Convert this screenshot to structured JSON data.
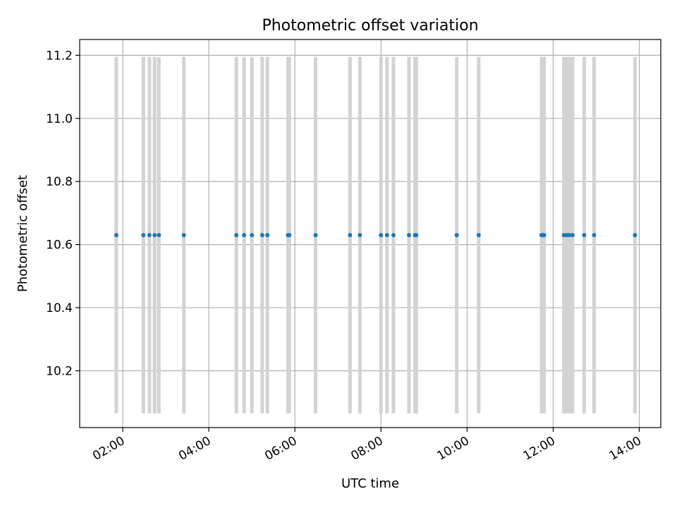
{
  "chart_data": {
    "type": "scatter",
    "title": "Photometric offset variation",
    "xlabel": "UTC time",
    "ylabel": "Photometric offset",
    "x_unit": "UTC time (hours)",
    "xlim": [
      1.0,
      14.5
    ],
    "ylim": [
      10.02,
      11.25
    ],
    "grid": true,
    "x_ticks": [
      {
        "value": 2,
        "label": "02:00"
      },
      {
        "value": 4,
        "label": "04:00"
      },
      {
        "value": 6,
        "label": "06:00"
      },
      {
        "value": 8,
        "label": "08:00"
      },
      {
        "value": 10,
        "label": "10:00"
      },
      {
        "value": 12,
        "label": "12:00"
      },
      {
        "value": 14,
        "label": "14:00"
      }
    ],
    "y_ticks": [
      {
        "value": 10.2,
        "label": "10.2"
      },
      {
        "value": 10.4,
        "label": "10.4"
      },
      {
        "value": 10.6,
        "label": "10.6"
      },
      {
        "value": 10.8,
        "label": "10.8"
      },
      {
        "value": 11.0,
        "label": "11.0"
      },
      {
        "value": 11.2,
        "label": "11.2"
      }
    ],
    "vline_range": [
      10.065,
      11.195
    ],
    "vline_color": "#d3d3d3",
    "point_color": "#1f77b4",
    "series": [
      {
        "y": 10.63,
        "x": [
          1.85,
          2.48,
          2.62,
          2.74,
          2.84,
          3.42,
          4.64,
          4.82,
          5.0,
          5.24,
          5.36,
          5.84,
          5.87,
          6.48,
          7.28,
          7.51,
          8.0,
          8.14,
          8.29,
          8.65,
          8.79,
          8.82,
          9.76,
          10.27,
          11.73,
          11.76,
          11.79,
          12.25,
          12.31,
          12.37,
          12.45,
          12.72,
          12.95,
          13.9
        ]
      }
    ]
  }
}
